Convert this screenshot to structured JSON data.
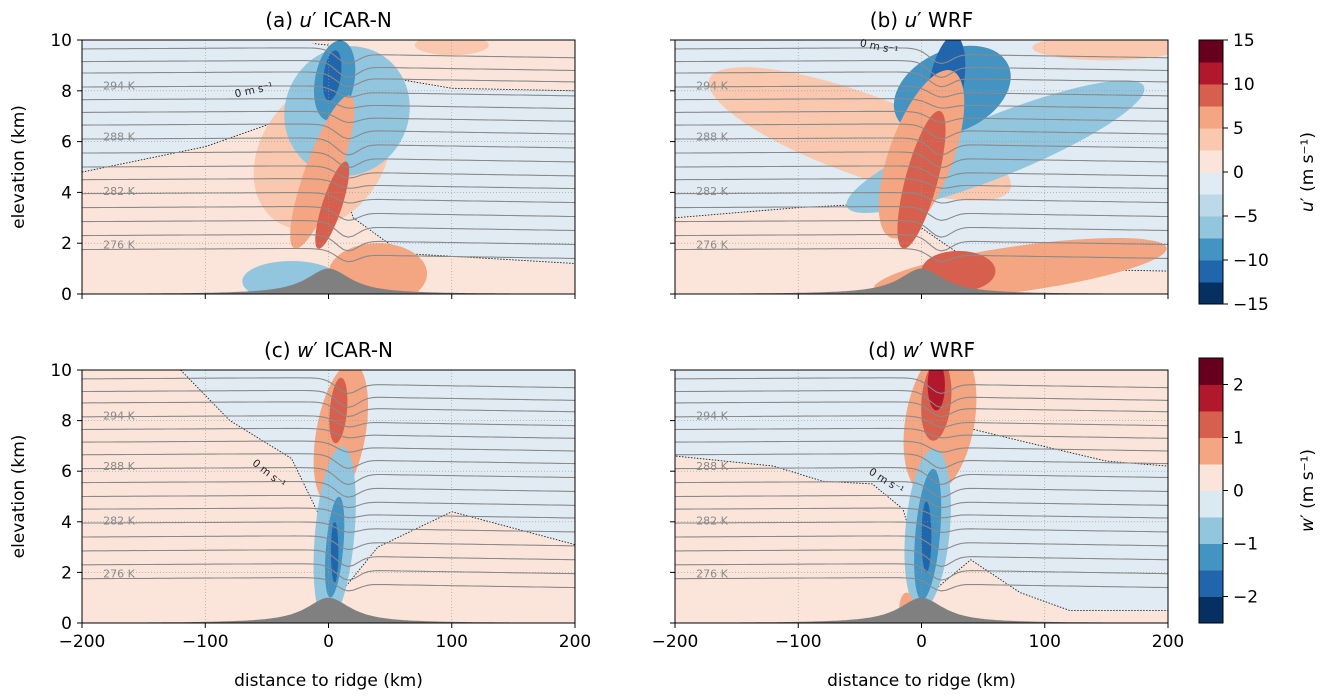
{
  "figure": {
    "xlabel": "distance to ridge (km)",
    "ylabel": "elevation (km)"
  },
  "chart_data": [
    {
      "type": "heatmap",
      "title_var": "u",
      "title_rest": " ICAR-N",
      "title_label": "(a)",
      "xlim": [
        -200,
        200
      ],
      "ylim": [
        0,
        10
      ],
      "x_ticks": [
        -200,
        -100,
        0,
        100,
        200
      ],
      "y_ticks": [
        0,
        2,
        4,
        6,
        8,
        10
      ],
      "theta_labels": [
        "294 K",
        "288 K",
        "282 K",
        "276 K"
      ],
      "zero_contour_label": "0 m s⁻¹",
      "grid": true
    },
    {
      "type": "heatmap",
      "title_var": "u",
      "title_rest": " WRF",
      "title_label": "(b)",
      "xlim": [
        -200,
        200
      ],
      "ylim": [
        0,
        10
      ],
      "x_ticks": [
        -200,
        -100,
        0,
        100,
        200
      ],
      "y_ticks": [
        0,
        2,
        4,
        6,
        8,
        10
      ],
      "theta_labels": [
        "294 K",
        "288 K",
        "282 K",
        "276 K"
      ],
      "zero_contour_label": "0 m s⁻¹",
      "grid": true
    },
    {
      "type": "heatmap",
      "title_var": "w",
      "title_rest": " ICAR-N",
      "title_label": "(c)",
      "xlim": [
        -200,
        200
      ],
      "ylim": [
        0,
        10
      ],
      "x_ticks": [
        -200,
        -100,
        0,
        100,
        200
      ],
      "y_ticks": [
        0,
        2,
        4,
        6,
        8,
        10
      ],
      "theta_labels": [
        "294 K",
        "288 K",
        "282 K",
        "276 K"
      ],
      "zero_contour_label": "0 m s⁻¹",
      "grid": true
    },
    {
      "type": "heatmap",
      "title_var": "w",
      "title_rest": " WRF",
      "title_label": "(d)",
      "xlim": [
        -200,
        200
      ],
      "ylim": [
        0,
        10
      ],
      "x_ticks": [
        -200,
        -100,
        0,
        100,
        200
      ],
      "y_ticks": [
        0,
        2,
        4,
        6,
        8,
        10
      ],
      "theta_labels": [
        "294 K",
        "288 K",
        "282 K",
        "276 K"
      ],
      "zero_contour_label": "0 m s⁻¹",
      "grid": true
    }
  ],
  "colorbars": [
    {
      "label_var": "u",
      "label_unit": " (m s⁻¹)",
      "levels": [
        -15,
        -12.5,
        -10,
        -7.5,
        -5,
        -2.5,
        0,
        2.5,
        5,
        7.5,
        10,
        12.5,
        15
      ],
      "tick_labels": [
        "−15",
        "−10",
        "−5",
        "0",
        "5",
        "10",
        "15"
      ],
      "tick_values": [
        -15,
        -10,
        -5,
        0,
        5,
        10,
        15
      ],
      "colors": [
        "#053061",
        "#2166ac",
        "#4393c3",
        "#92c5de",
        "#bcd9ea",
        "#e1ebf3",
        "#fbe5da",
        "#f9c8ae",
        "#f4a582",
        "#d6604d",
        "#b2182b",
        "#67001f"
      ]
    },
    {
      "label_var": "w",
      "label_unit": " (m s⁻¹)",
      "levels": [
        -2.5,
        -2,
        -1.5,
        -1,
        -0.5,
        0,
        0.5,
        1,
        1.5,
        2,
        2.5
      ],
      "tick_labels": [
        "−2",
        "−1",
        "0",
        "1",
        "2"
      ],
      "tick_values": [
        -2,
        -1,
        0,
        1,
        2
      ],
      "colors": [
        "#053061",
        "#2166ac",
        "#4393c3",
        "#92c5de",
        "#dbe9f2",
        "#fbe5da",
        "#f4a582",
        "#d6604d",
        "#b2182b",
        "#67001f"
      ]
    }
  ],
  "colors": {
    "light_blue_bg": "#e1ebf3",
    "light_red_bg": "#fbe5da",
    "theta_line": "#8a8a8a",
    "terrain": "#808080"
  }
}
